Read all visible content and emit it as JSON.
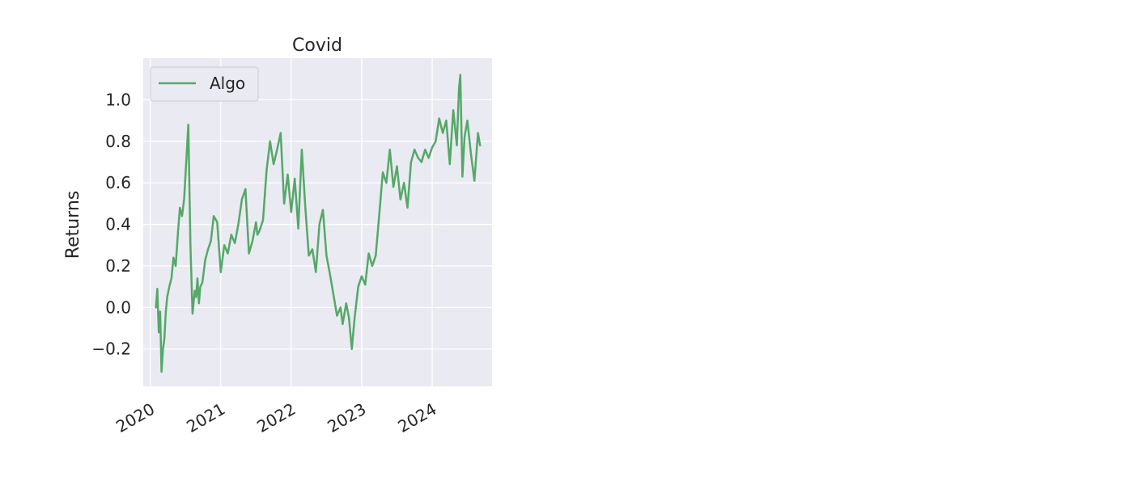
{
  "chart_data": {
    "type": "line",
    "title": "Covid",
    "xlabel": "",
    "ylabel": "Returns",
    "xlim": [
      2019.9,
      2024.85
    ],
    "ylim": [
      -0.38,
      1.2
    ],
    "xticks": [
      {
        "value": 2020,
        "label": "2020"
      },
      {
        "value": 2021,
        "label": "2021"
      },
      {
        "value": 2022,
        "label": "2022"
      },
      {
        "value": 2023,
        "label": "2023"
      },
      {
        "value": 2024,
        "label": "2024"
      }
    ],
    "yticks": [
      {
        "value": -0.2,
        "label": "−0.2"
      },
      {
        "value": 0.0,
        "label": "0.0"
      },
      {
        "value": 0.2,
        "label": "0.2"
      },
      {
        "value": 0.4,
        "label": "0.4"
      },
      {
        "value": 0.6,
        "label": "0.6"
      },
      {
        "value": 0.8,
        "label": "0.8"
      },
      {
        "value": 1.0,
        "label": "1.0"
      }
    ],
    "grid": true,
    "legend": {
      "position": "top-left",
      "entries": [
        "Algo"
      ]
    },
    "series": [
      {
        "name": "Algo",
        "color": "#55a868",
        "x": [
          2020.08,
          2020.1,
          2020.12,
          2020.14,
          2020.16,
          2020.18,
          2020.2,
          2020.22,
          2020.24,
          2020.27,
          2020.3,
          2020.33,
          2020.36,
          2020.39,
          2020.42,
          2020.45,
          2020.48,
          2020.51,
          2020.54,
          2020.57,
          2020.6,
          2020.63,
          2020.65,
          2020.67,
          2020.69,
          2020.71,
          2020.74,
          2020.78,
          2020.82,
          2020.86,
          2020.9,
          2020.95,
          2021.0,
          2021.05,
          2021.1,
          2021.15,
          2021.2,
          2021.25,
          2021.3,
          2021.35,
          2021.4,
          2021.45,
          2021.5,
          2021.52,
          2021.55,
          2021.6,
          2021.65,
          2021.7,
          2021.75,
          2021.8,
          2021.85,
          2021.9,
          2021.95,
          2022.0,
          2022.05,
          2022.1,
          2022.15,
          2022.2,
          2022.25,
          2022.3,
          2022.35,
          2022.4,
          2022.45,
          2022.5,
          2022.55,
          2022.6,
          2022.65,
          2022.7,
          2022.73,
          2022.78,
          2022.82,
          2022.86,
          2022.9,
          2022.95,
          2023.0,
          2023.05,
          2023.1,
          2023.15,
          2023.2,
          2023.25,
          2023.3,
          2023.35,
          2023.4,
          2023.45,
          2023.5,
          2023.55,
          2023.6,
          2023.65,
          2023.7,
          2023.75,
          2023.8,
          2023.85,
          2023.9,
          2023.95,
          2024.0,
          2024.05,
          2024.1,
          2024.15,
          2024.2,
          2024.25,
          2024.3,
          2024.35,
          2024.38,
          2024.4,
          2024.43,
          2024.46,
          2024.5,
          2024.55,
          2024.6,
          2024.65,
          2024.68
        ],
        "values": [
          0.0,
          0.09,
          -0.12,
          -0.02,
          -0.31,
          -0.2,
          -0.15,
          -0.02,
          0.05,
          0.1,
          0.14,
          0.24,
          0.2,
          0.35,
          0.48,
          0.44,
          0.52,
          0.7,
          0.88,
          0.3,
          -0.03,
          0.08,
          0.05,
          0.14,
          0.02,
          0.1,
          0.12,
          0.23,
          0.28,
          0.32,
          0.44,
          0.41,
          0.17,
          0.3,
          0.26,
          0.35,
          0.31,
          0.4,
          0.52,
          0.57,
          0.26,
          0.32,
          0.41,
          0.35,
          0.37,
          0.42,
          0.66,
          0.8,
          0.69,
          0.76,
          0.84,
          0.5,
          0.64,
          0.46,
          0.62,
          0.38,
          0.76,
          0.48,
          0.25,
          0.28,
          0.17,
          0.4,
          0.47,
          0.25,
          0.16,
          0.06,
          -0.04,
          0.0,
          -0.08,
          0.02,
          -0.05,
          -0.2,
          -0.05,
          0.1,
          0.15,
          0.11,
          0.26,
          0.2,
          0.25,
          0.45,
          0.65,
          0.6,
          0.76,
          0.58,
          0.68,
          0.52,
          0.6,
          0.48,
          0.7,
          0.76,
          0.72,
          0.7,
          0.76,
          0.72,
          0.77,
          0.8,
          0.91,
          0.84,
          0.9,
          0.69,
          0.95,
          0.78,
          1.05,
          1.12,
          0.63,
          0.82,
          0.9,
          0.74,
          0.61,
          0.84,
          0.78
        ]
      }
    ]
  }
}
